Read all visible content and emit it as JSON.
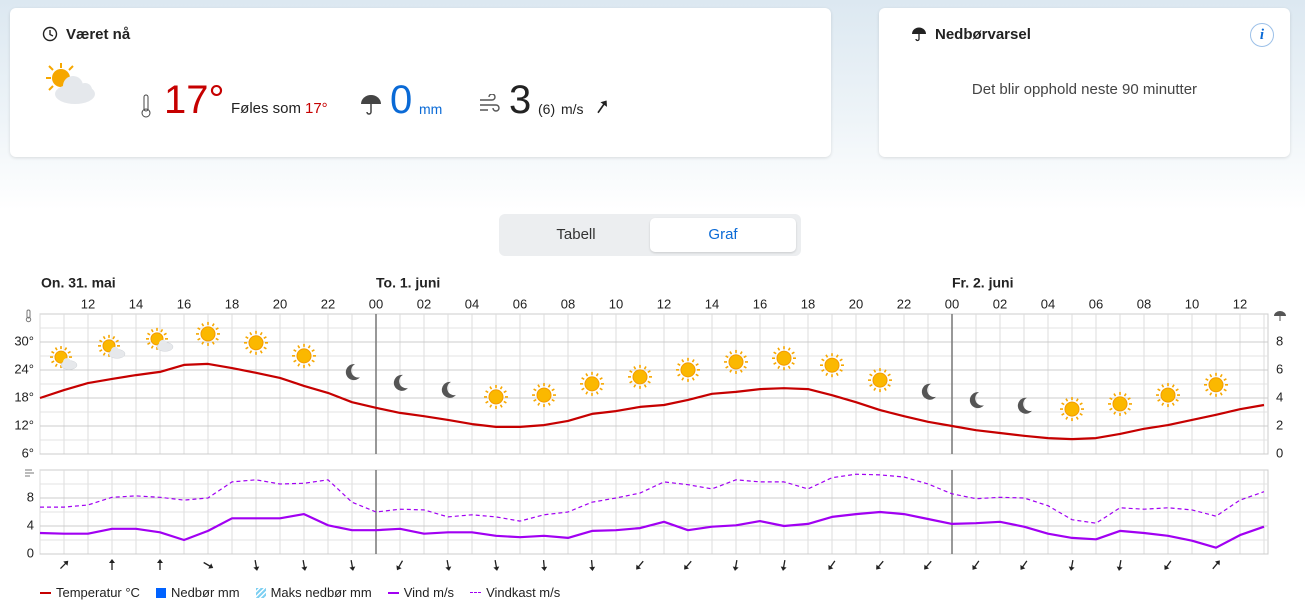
{
  "now": {
    "title": "Været nå",
    "temperature": {
      "value": 17,
      "label": "17°"
    },
    "feels_like_label": "Føles som",
    "feels_like": {
      "value": 17,
      "label": "17°"
    },
    "precipitation": 0,
    "precipitation_unit": "mm",
    "wind": 3,
    "gust": {
      "value": 6,
      "label": "(6)"
    },
    "wind_unit": "m/s"
  },
  "nowcast": {
    "title": "Nedbørvarsel",
    "info": "i",
    "message": "Det blir opphold neste 90 minutter"
  },
  "tabs": {
    "items": [
      "Tabell",
      "Graf"
    ],
    "active": 1
  },
  "chart_data": [
    {
      "type": "line",
      "days": [
        "On. 31. mai",
        "To. 1. juni",
        "Fr. 2. juni"
      ],
      "categories": [
        null,
        null,
        "12",
        null,
        "14",
        null,
        "16",
        null,
        "18",
        null,
        "20",
        null,
        "22",
        null,
        "00",
        null,
        "02",
        null,
        "04",
        null,
        "06",
        null,
        "08",
        null,
        "10",
        null,
        "12",
        null,
        "14",
        null,
        "16",
        null,
        "18",
        null,
        "20",
        null,
        "22",
        null,
        "00",
        null,
        "02",
        null,
        "04",
        null,
        "06",
        null,
        "08",
        null,
        "10",
        null,
        "12",
        null
      ],
      "ylim": [
        6,
        36
      ],
      "yticks": [
        {
          "value": 6,
          "label": "6°"
        },
        {
          "value": 12,
          "label": "12°"
        },
        {
          "value": 18,
          "label": "18°"
        },
        {
          "value": 24,
          "label": "24°"
        },
        {
          "value": 30,
          "label": "30°"
        }
      ],
      "y2lim": [
        0,
        10
      ],
      "y2ticks": [
        0,
        2,
        4,
        6,
        8
      ],
      "grid": true,
      "series": [
        {
          "name": "Temperatur °C",
          "color": "#c60000",
          "style": "line",
          "values": [
            18,
            19.7,
            21.2,
            22.1,
            22.9,
            23.6,
            25.1,
            25.3,
            24.4,
            23.4,
            22.3,
            20.6,
            19.1,
            17.1,
            15.9,
            14.8,
            14.1,
            13.3,
            12.4,
            11.8,
            11.8,
            12.2,
            13.1,
            14.6,
            15.2,
            16.1,
            16.5,
            17.6,
            18.9,
            19.3,
            19.9,
            20.1,
            19.9,
            18.6,
            17.1,
            15.4,
            14.1,
            12.9,
            12,
            11.1,
            10.5,
            9.9,
            9.4,
            9.2,
            9.4,
            10.3,
            11.4,
            12.2,
            13.3,
            14.4,
            15.6,
            16.5
          ]
        },
        {
          "name": "Nedbør mm",
          "color": "#0062ff",
          "style": "bar",
          "axis": "y2"
        },
        {
          "name": "Maks nedbør mm",
          "color": "#7fd0f2",
          "style": "hatch",
          "axis": "y2"
        }
      ]
    },
    {
      "type": "line",
      "ylim": [
        0,
        12
      ],
      "yticks": [
        0,
        4,
        8
      ],
      "grid": true,
      "series": [
        {
          "name": "Vind m/s",
          "color": "#a100f2",
          "style": "line",
          "values": [
            3.0,
            2.9,
            2.9,
            3.6,
            3.6,
            3.1,
            2.0,
            3.3,
            5.1,
            5.1,
            5.1,
            5.7,
            4.1,
            3.4,
            3.4,
            3.6,
            2.9,
            3.1,
            3.1,
            2.6,
            2.4,
            2.6,
            2.3,
            3.3,
            3.4,
            3.7,
            4.6,
            3.4,
            3.9,
            4.1,
            4.7,
            4.0,
            4.3,
            5.3,
            5.7,
            6.0,
            5.7,
            5.0,
            4.3,
            4.4,
            4.6,
            3.9,
            2.9,
            2.3,
            2.1,
            3.3,
            3.0,
            2.6,
            1.9,
            0.9,
            2.7,
            3.9
          ]
        },
        {
          "name": "Vindkast m/s",
          "color": "#a100f2",
          "style": "dash",
          "values": [
            6.7,
            6.7,
            7.0,
            8.1,
            8.3,
            8.1,
            7.7,
            8.0,
            10.3,
            10.6,
            10.0,
            10.1,
            10.6,
            7.4,
            6.0,
            6.4,
            6.3,
            5.3,
            5.6,
            5.3,
            4.7,
            5.6,
            6.0,
            7.4,
            8.0,
            8.7,
            10.3,
            9.9,
            9.3,
            10.6,
            10.3,
            10.3,
            9.3,
            10.9,
            11.4,
            11.3,
            11.0,
            10.0,
            8.6,
            7.9,
            8.1,
            8.0,
            6.9,
            4.9,
            4.4,
            6.6,
            6.4,
            6.6,
            6.3,
            5.4,
            7.7,
            8.9
          ]
        }
      ]
    }
  ]
}
